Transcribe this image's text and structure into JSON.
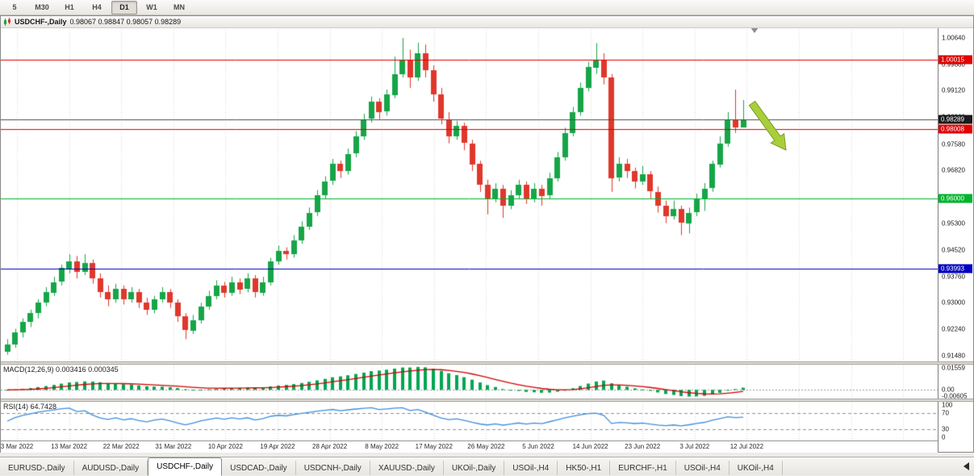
{
  "toolbar": {
    "timeframes": [
      "5",
      "M30",
      "H1",
      "H4",
      "D1",
      "W1",
      "MN"
    ],
    "active": "D1"
  },
  "chart": {
    "symbol": "USDCHF-,Daily",
    "ohlc_text": "0.98067 0.98847 0.98057 0.98289"
  },
  "chart_data": {
    "type": "candlestick",
    "symbol": "USDCHF",
    "timeframe": "Daily",
    "last_bar": {
      "open": 0.98067,
      "high": 0.98847,
      "low": 0.98057,
      "close": 0.98289
    },
    "y_axis": {
      "max": 1.00943,
      "min": 0.91308,
      "labels": [
        "1.00640",
        "0.99880",
        "0.99120",
        "0.98360",
        "0.97580",
        "0.96820",
        "0.96060",
        "0.95300",
        "0.94520",
        "0.93760",
        "0.93000",
        "0.92240",
        "0.91480"
      ]
    },
    "x_dates": [
      "3 Mar 2022",
      "13 Mar 2022",
      "22 Mar 2022",
      "31 Mar 2022",
      "10 Apr 2022",
      "19 Apr 2022",
      "28 Apr 2022",
      "8 May 2022",
      "17 May 2022",
      "26 May 2022",
      "5 Jun 2022",
      "14 Jun 2022",
      "23 Jun 2022",
      "3 Jul 2022",
      "12 Jul 2022"
    ],
    "hlines": [
      {
        "price": 1.00015,
        "label": "1.00015",
        "color": "#e00000"
      },
      {
        "price": 0.98008,
        "label": "0.98008",
        "color": "#e00000"
      },
      {
        "price": 0.96,
        "label": "0.96000",
        "color": "#00b32c"
      },
      {
        "price": 0.93993,
        "label": "0.93993",
        "color": "#0000c0"
      }
    ],
    "current_price": {
      "value": 0.98289,
      "label": "0.98289"
    },
    "candles": [
      [
        0.916,
        0.9195,
        0.915,
        0.918
      ],
      [
        0.918,
        0.9225,
        0.917,
        0.9215
      ],
      [
        0.9215,
        0.9255,
        0.92,
        0.9245
      ],
      [
        0.9245,
        0.928,
        0.923,
        0.927
      ],
      [
        0.927,
        0.931,
        0.9255,
        0.93
      ],
      [
        0.93,
        0.9345,
        0.929,
        0.933
      ],
      [
        0.933,
        0.9375,
        0.932,
        0.936
      ],
      [
        0.936,
        0.941,
        0.935,
        0.94
      ],
      [
        0.94,
        0.944,
        0.9385,
        0.942
      ],
      [
        0.942,
        0.9435,
        0.937,
        0.939
      ],
      [
        0.939,
        0.944,
        0.938,
        0.9415
      ],
      [
        0.9415,
        0.9425,
        0.9355,
        0.937
      ],
      [
        0.937,
        0.9385,
        0.9315,
        0.933
      ],
      [
        0.933,
        0.935,
        0.929,
        0.931
      ],
      [
        0.931,
        0.9355,
        0.93,
        0.934
      ],
      [
        0.934,
        0.935,
        0.9295,
        0.931
      ],
      [
        0.931,
        0.9345,
        0.93,
        0.933
      ],
      [
        0.933,
        0.934,
        0.9285,
        0.93
      ],
      [
        0.93,
        0.9315,
        0.9265,
        0.928
      ],
      [
        0.928,
        0.932,
        0.927,
        0.931
      ],
      [
        0.931,
        0.9345,
        0.93,
        0.933
      ],
      [
        0.933,
        0.934,
        0.9285,
        0.93
      ],
      [
        0.93,
        0.931,
        0.9245,
        0.926
      ],
      [
        0.926,
        0.927,
        0.9195,
        0.922
      ],
      [
        0.922,
        0.9265,
        0.921,
        0.925
      ],
      [
        0.925,
        0.93,
        0.924,
        0.929
      ],
      [
        0.929,
        0.9335,
        0.928,
        0.932
      ],
      [
        0.932,
        0.9365,
        0.931,
        0.935
      ],
      [
        0.935,
        0.936,
        0.9315,
        0.933
      ],
      [
        0.933,
        0.9375,
        0.932,
        0.936
      ],
      [
        0.936,
        0.937,
        0.9325,
        0.934
      ],
      [
        0.934,
        0.9385,
        0.933,
        0.937
      ],
      [
        0.937,
        0.938,
        0.9315,
        0.933
      ],
      [
        0.933,
        0.9375,
        0.932,
        0.936
      ],
      [
        0.936,
        0.943,
        0.935,
        0.942
      ],
      [
        0.942,
        0.9465,
        0.941,
        0.945
      ],
      [
        0.945,
        0.946,
        0.9425,
        0.944
      ],
      [
        0.944,
        0.9495,
        0.943,
        0.948
      ],
      [
        0.948,
        0.9535,
        0.947,
        0.952
      ],
      [
        0.952,
        0.9575,
        0.951,
        0.956
      ],
      [
        0.956,
        0.9625,
        0.955,
        0.961
      ],
      [
        0.961,
        0.9665,
        0.96,
        0.965
      ],
      [
        0.965,
        0.9715,
        0.964,
        0.97
      ],
      [
        0.97,
        0.971,
        0.966,
        0.968
      ],
      [
        0.968,
        0.9745,
        0.967,
        0.973
      ],
      [
        0.973,
        0.9795,
        0.972,
        0.978
      ],
      [
        0.978,
        0.9845,
        0.977,
        0.983
      ],
      [
        0.983,
        0.9895,
        0.982,
        0.988
      ],
      [
        0.988,
        0.989,
        0.983,
        0.985
      ],
      [
        0.985,
        0.9915,
        0.984,
        0.99
      ],
      [
        0.99,
        1.001,
        0.989,
        0.996
      ],
      [
        0.996,
        1.0064,
        0.995,
        1.0
      ],
      [
        1.0,
        1.003,
        0.992,
        0.995
      ],
      [
        0.995,
        1.005,
        0.994,
        1.002
      ],
      [
        1.002,
        1.0045,
        0.995,
        0.997
      ],
      [
        0.997,
        0.9985,
        0.988,
        0.99
      ],
      [
        0.99,
        0.992,
        0.9815,
        0.983
      ],
      [
        0.983,
        0.985,
        0.976,
        0.978
      ],
      [
        0.978,
        0.9825,
        0.977,
        0.981
      ],
      [
        0.981,
        0.982,
        0.974,
        0.976
      ],
      [
        0.976,
        0.977,
        0.968,
        0.97
      ],
      [
        0.97,
        0.971,
        0.962,
        0.964
      ],
      [
        0.964,
        0.9655,
        0.9555,
        0.96
      ],
      [
        0.96,
        0.9645,
        0.959,
        0.963
      ],
      [
        0.963,
        0.964,
        0.9545,
        0.958
      ],
      [
        0.958,
        0.9625,
        0.957,
        0.961
      ],
      [
        0.961,
        0.9655,
        0.96,
        0.964
      ],
      [
        0.964,
        0.965,
        0.9585,
        0.96
      ],
      [
        0.96,
        0.9645,
        0.959,
        0.963
      ],
      [
        0.963,
        0.964,
        0.958,
        0.961
      ],
      [
        0.961,
        0.9675,
        0.96,
        0.966
      ],
      [
        0.966,
        0.9735,
        0.965,
        0.972
      ],
      [
        0.972,
        0.9805,
        0.971,
        0.979
      ],
      [
        0.979,
        0.9865,
        0.978,
        0.985
      ],
      [
        0.985,
        0.9935,
        0.984,
        0.992
      ],
      [
        0.992,
        0.9995,
        0.991,
        0.998
      ],
      [
        0.998,
        1.0049,
        0.996,
        1.0
      ],
      [
        1.0,
        1.002,
        0.993,
        0.995
      ],
      [
        0.995,
        0.996,
        0.962,
        0.966
      ],
      [
        0.966,
        0.972,
        0.965,
        0.97
      ],
      [
        0.97,
        0.9715,
        0.966,
        0.968
      ],
      [
        0.968,
        0.969,
        0.963,
        0.965
      ],
      [
        0.965,
        0.9695,
        0.964,
        0.967
      ],
      [
        0.967,
        0.968,
        0.96,
        0.962
      ],
      [
        0.962,
        0.9635,
        0.956,
        0.958
      ],
      [
        0.958,
        0.9595,
        0.953,
        0.955
      ],
      [
        0.955,
        0.9595,
        0.954,
        0.957
      ],
      [
        0.957,
        0.958,
        0.9495,
        0.953
      ],
      [
        0.953,
        0.9575,
        0.95,
        0.956
      ],
      [
        0.956,
        0.9615,
        0.955,
        0.96
      ],
      [
        0.96,
        0.9645,
        0.9565,
        0.963
      ],
      [
        0.963,
        0.971,
        0.962,
        0.97
      ],
      [
        0.97,
        0.978,
        0.969,
        0.976
      ],
      [
        0.976,
        0.985,
        0.975,
        0.983
      ],
      [
        0.983,
        0.9915,
        0.979,
        0.9807
      ],
      [
        0.98067,
        0.98847,
        0.98057,
        0.98289
      ]
    ],
    "macd": {
      "name": "MACD(12,26,9)",
      "value_main": "0.003416",
      "value_signal": "0.000345",
      "fast": 12,
      "slow": 26,
      "signal": 9,
      "axis_labels": [
        "0.01559",
        "0.00",
        "-0.00605"
      ]
    },
    "rsi": {
      "name": "RSI(14)",
      "value": "64.7428",
      "period": 14,
      "levels": [
        70,
        30
      ],
      "axis_labels": [
        "100",
        "70",
        "30",
        "0"
      ]
    },
    "annotation": {
      "type": "arrow",
      "direction": "down-right",
      "color": "#a9ce3b"
    }
  },
  "tabs": {
    "items": [
      "EURUSD-,Daily",
      "AUDUSD-,Daily",
      "USDCHF-,Daily",
      "USDCAD-,Daily",
      "USDCNH-,Daily",
      "XAUUSD-,Daily",
      "UKOil-,Daily",
      "USOil-,H4",
      "HK50-,H1",
      "EURCHF-,H1",
      "USOil-,H4",
      "UKOil-,H4"
    ],
    "active_index": 2
  },
  "colors": {
    "bull": "#16a548",
    "bear": "#e0372b",
    "grid": "#d8d8d8",
    "current_price_line": "#4d4d4d",
    "current_price_badge": "#1a1a1a",
    "macd_hist": "#00a651",
    "macd_signal": "#d40000",
    "rsi_line": "#3f8ede",
    "rsi_level": "#8f8f8f"
  }
}
